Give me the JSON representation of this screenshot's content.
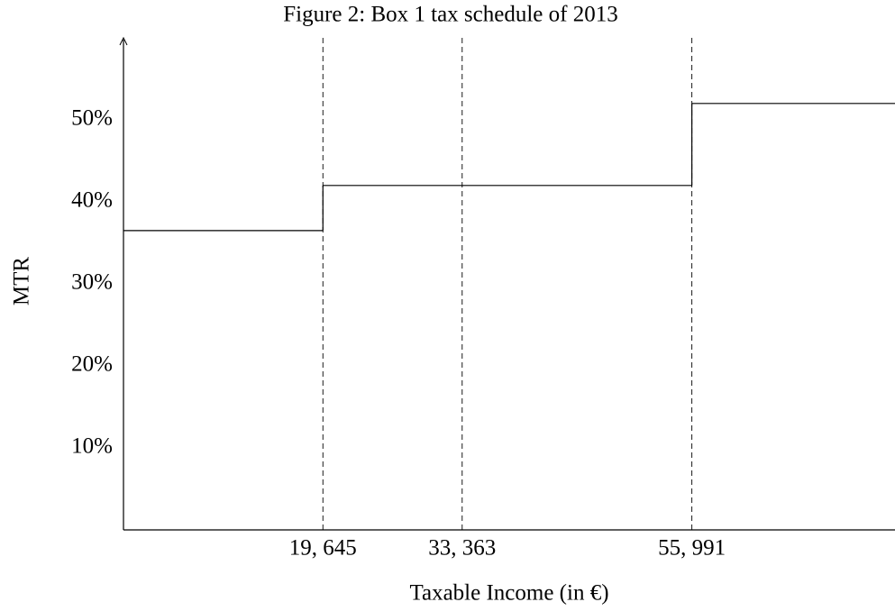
{
  "chart_data": {
    "type": "step",
    "title": "Figure 2: Box 1 tax schedule of 2013",
    "xlabel": "Taxable Income (in €)",
    "ylabel": "MTR",
    "x": [
      0,
      19645,
      33363,
      55991
    ],
    "values": [
      36.5,
      42,
      42,
      52
    ],
    "color": "#000000",
    "xlim": [
      0,
      76000
    ],
    "ylim": [
      0,
      60
    ],
    "xticks": [
      {
        "value": 19645,
        "label": "19, 645"
      },
      {
        "value": 33363,
        "label": "33, 363"
      },
      {
        "value": 55991,
        "label": "55, 991"
      }
    ],
    "yticks": [
      {
        "value": 10,
        "label": "10%"
      },
      {
        "value": 20,
        "label": "20%"
      },
      {
        "value": 30,
        "label": "30%"
      },
      {
        "value": 40,
        "label": "40%"
      },
      {
        "value": 50,
        "label": "50%"
      }
    ],
    "grid": false,
    "tick_lines": "dashed"
  }
}
